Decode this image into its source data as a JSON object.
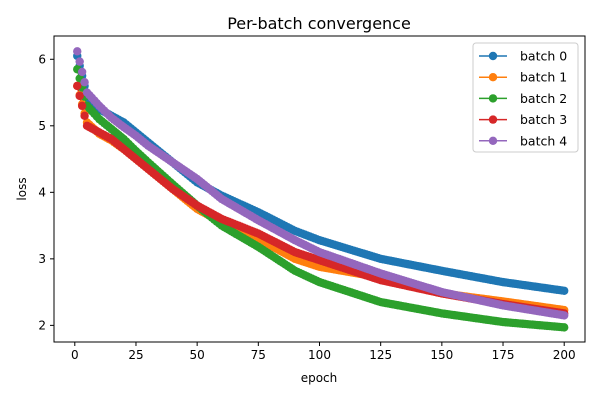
{
  "chart_data": {
    "type": "line",
    "title": "Per-batch convergence",
    "xlabel": "epoch",
    "ylabel": "loss",
    "xlim": [
      -8.5,
      208.5
    ],
    "ylim": [
      1.75,
      6.35
    ],
    "xticks": [
      0,
      25,
      50,
      75,
      100,
      125,
      150,
      175,
      200
    ],
    "yticks": [
      2,
      3,
      4,
      5,
      6
    ],
    "grid": false,
    "legend": "top-right",
    "markers": "circle",
    "x": [
      1,
      5,
      10,
      15,
      20,
      25,
      30,
      40,
      50,
      60,
      75,
      90,
      100,
      125,
      150,
      175,
      200
    ],
    "series": [
      {
        "name": "batch 0",
        "color": "#1f77b4",
        "values": [
          6.05,
          5.45,
          5.25,
          5.15,
          5.05,
          4.9,
          4.75,
          4.45,
          4.15,
          3.95,
          3.7,
          3.42,
          3.28,
          3.0,
          2.82,
          2.65,
          2.52
        ]
      },
      {
        "name": "batch 1",
        "color": "#ff7f0e",
        "values": [
          5.6,
          5.05,
          4.88,
          4.78,
          4.65,
          4.5,
          4.35,
          4.05,
          3.75,
          3.55,
          3.3,
          3.0,
          2.88,
          2.72,
          2.48,
          2.36,
          2.23
        ]
      },
      {
        "name": "batch 2",
        "color": "#2ca02c",
        "values": [
          5.85,
          5.3,
          5.1,
          4.95,
          4.8,
          4.62,
          4.45,
          4.12,
          3.8,
          3.5,
          3.18,
          2.82,
          2.65,
          2.35,
          2.18,
          2.05,
          1.97
        ]
      },
      {
        "name": "batch 3",
        "color": "#d62728",
        "values": [
          5.6,
          5.0,
          4.9,
          4.8,
          4.65,
          4.5,
          4.35,
          4.05,
          3.8,
          3.6,
          3.38,
          3.1,
          2.98,
          2.68,
          2.48,
          2.32,
          2.18
        ]
      },
      {
        "name": "batch 4",
        "color": "#9467bd",
        "values": [
          6.12,
          5.5,
          5.3,
          5.12,
          4.98,
          4.85,
          4.7,
          4.45,
          4.2,
          3.9,
          3.58,
          3.28,
          3.1,
          2.78,
          2.5,
          2.3,
          2.15
        ]
      }
    ]
  }
}
